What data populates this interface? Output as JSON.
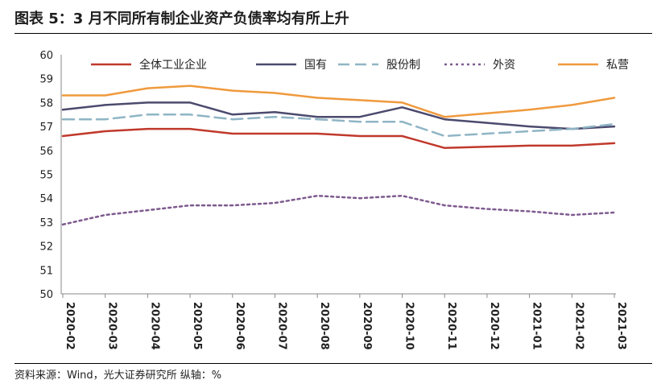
{
  "header": {
    "title": "图表 5：3 月不同所有制企业资产负债率均有所上升"
  },
  "footer": {
    "source": "资料来源：Wind，光大证券研究所   纵轴：%"
  },
  "chart_data": {
    "type": "line",
    "title": "",
    "xlabel": "",
    "ylabel": "",
    "ylim": [
      50,
      60
    ],
    "yticks": [
      50,
      51,
      52,
      53,
      54,
      55,
      56,
      57,
      58,
      59,
      60
    ],
    "grid": false,
    "legend_position": "top",
    "categories": [
      "2020-02",
      "2020-03",
      "2020-04",
      "2020-05",
      "2020-06",
      "2020-07",
      "2020-08",
      "2020-09",
      "2020-10",
      "2020-11",
      "2020-12",
      "2021-01",
      "2021-02",
      "2021-03"
    ],
    "series": [
      {
        "name": "全体工业企业",
        "color": "#c0392b",
        "dash": "solid",
        "values": [
          56.6,
          56.8,
          56.9,
          56.9,
          56.7,
          56.7,
          56.7,
          56.6,
          56.6,
          56.1,
          56.15,
          56.2,
          56.2,
          56.3
        ]
      },
      {
        "name": "国有",
        "color": "#4b4a6e",
        "dash": "solid",
        "values": [
          57.7,
          57.9,
          58.0,
          58.0,
          57.5,
          57.6,
          57.4,
          57.4,
          57.8,
          57.3,
          57.15,
          57.0,
          56.9,
          57.0
        ]
      },
      {
        "name": "股份制",
        "color": "#8fb5c5",
        "dash": "longdash",
        "values": [
          57.3,
          57.3,
          57.5,
          57.5,
          57.3,
          57.4,
          57.3,
          57.2,
          57.2,
          56.6,
          56.7,
          56.8,
          56.9,
          57.1
        ]
      },
      {
        "name": "外资",
        "color": "#7e5a8f",
        "dash": "dot",
        "values": [
          52.9,
          53.3,
          53.5,
          53.7,
          53.7,
          53.8,
          54.1,
          54.0,
          54.1,
          53.7,
          53.55,
          53.45,
          53.3,
          53.4
        ]
      },
      {
        "name": "私营",
        "color": "#ef9a3d",
        "dash": "solid",
        "values": [
          58.3,
          58.3,
          58.6,
          58.7,
          58.5,
          58.4,
          58.2,
          58.1,
          58.0,
          57.4,
          57.55,
          57.7,
          57.9,
          58.2
        ]
      }
    ]
  }
}
